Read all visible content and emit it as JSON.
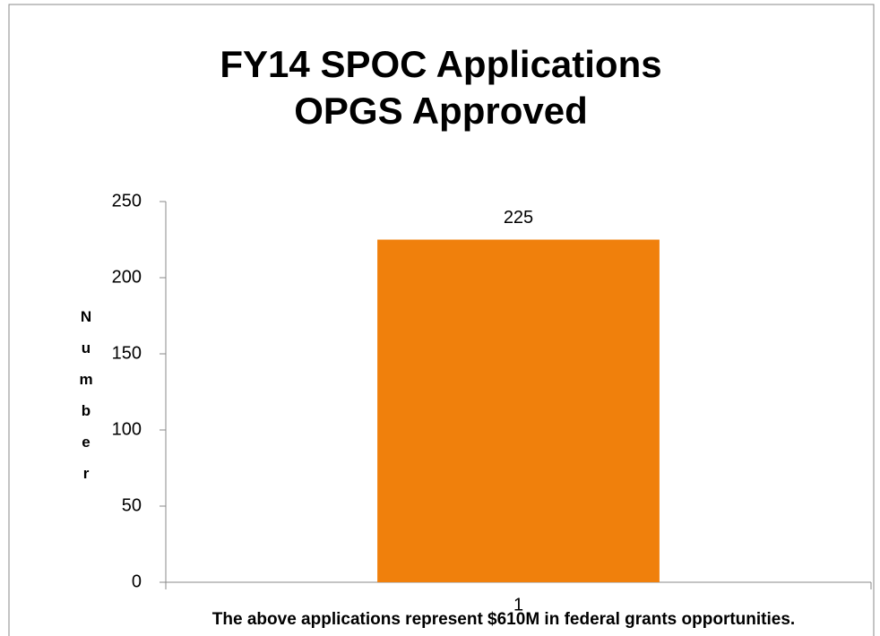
{
  "chart_data": {
    "type": "bar",
    "title": [
      "FY14 SPOC Applications",
      "OPGS Approved"
    ],
    "y_label": "Number",
    "x_label": "The above applications represent $610M in federal grants opportunities.",
    "categories": [
      "1"
    ],
    "values": [
      225
    ],
    "color": "#f0800c",
    "ylim": [
      0,
      250
    ],
    "yticks": [
      0,
      50,
      100,
      150,
      200,
      250
    ],
    "grid": false
  }
}
